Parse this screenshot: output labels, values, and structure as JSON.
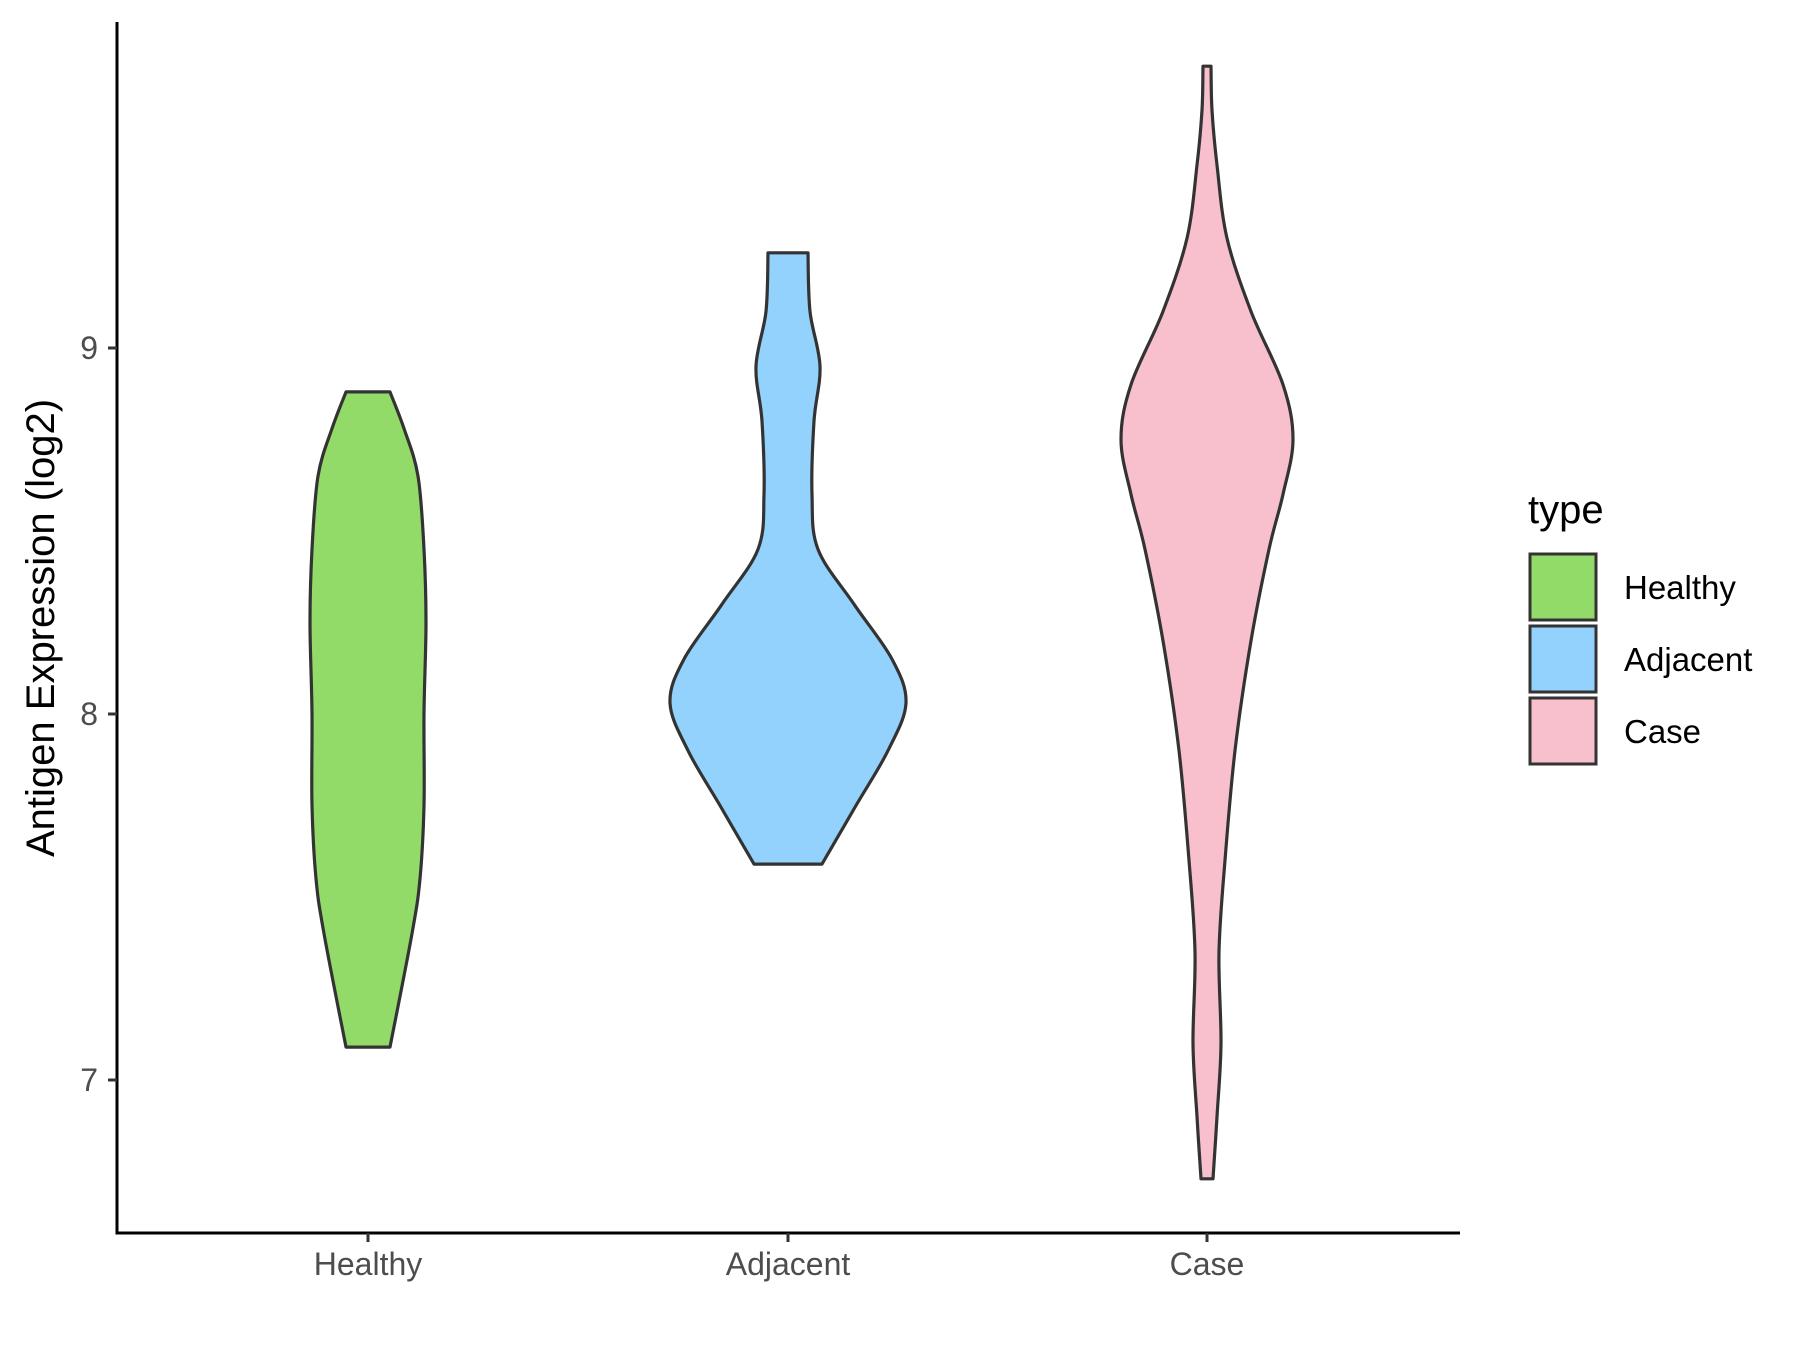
{
  "chart_data": {
    "type": "violin",
    "title": "",
    "xlabel": "",
    "ylabel": "Antigen Expression (log2)",
    "ylim": [
      6.6,
      9.9
    ],
    "yticks": [
      7,
      8,
      9
    ],
    "categories": [
      "Healthy",
      "Adjacent",
      "Case"
    ],
    "legend": {
      "title": "type",
      "position": "right",
      "entries": [
        "Healthy",
        "Adjacent",
        "Case"
      ]
    },
    "grid": false,
    "series": [
      {
        "name": "Healthy",
        "color": "#93DB69",
        "min": 7.09,
        "max": 8.88,
        "profile": [
          [
            7.09,
            0.11
          ],
          [
            7.4,
            0.22
          ],
          [
            7.55,
            0.26
          ],
          [
            7.75,
            0.28
          ],
          [
            8.0,
            0.28
          ],
          [
            8.25,
            0.29
          ],
          [
            8.45,
            0.28
          ],
          [
            8.65,
            0.25
          ],
          [
            8.78,
            0.18
          ],
          [
            8.88,
            0.11
          ]
        ]
      },
      {
        "name": "Adjacent",
        "color": "#94D2FE",
        "min": 7.59,
        "max": 9.26,
        "profile": [
          [
            7.59,
            0.17
          ],
          [
            7.75,
            0.34
          ],
          [
            7.9,
            0.5
          ],
          [
            8.03,
            0.59
          ],
          [
            8.15,
            0.52
          ],
          [
            8.3,
            0.33
          ],
          [
            8.45,
            0.15
          ],
          [
            8.6,
            0.12
          ],
          [
            8.8,
            0.13
          ],
          [
            8.95,
            0.16
          ],
          [
            9.1,
            0.11
          ],
          [
            9.26,
            0.1
          ]
        ]
      },
      {
        "name": "Case",
        "color": "#F8C0CC",
        "min": 6.73,
        "max": 9.77,
        "profile": [
          [
            6.73,
            0.03
          ],
          [
            6.9,
            0.05
          ],
          [
            7.1,
            0.07
          ],
          [
            7.35,
            0.06
          ],
          [
            7.6,
            0.09
          ],
          [
            7.9,
            0.14
          ],
          [
            8.2,
            0.22
          ],
          [
            8.45,
            0.31
          ],
          [
            8.6,
            0.38
          ],
          [
            8.75,
            0.43
          ],
          [
            8.9,
            0.38
          ],
          [
            9.1,
            0.22
          ],
          [
            9.3,
            0.1
          ],
          [
            9.5,
            0.05
          ],
          [
            9.65,
            0.025
          ],
          [
            9.77,
            0.02
          ]
        ]
      }
    ]
  }
}
